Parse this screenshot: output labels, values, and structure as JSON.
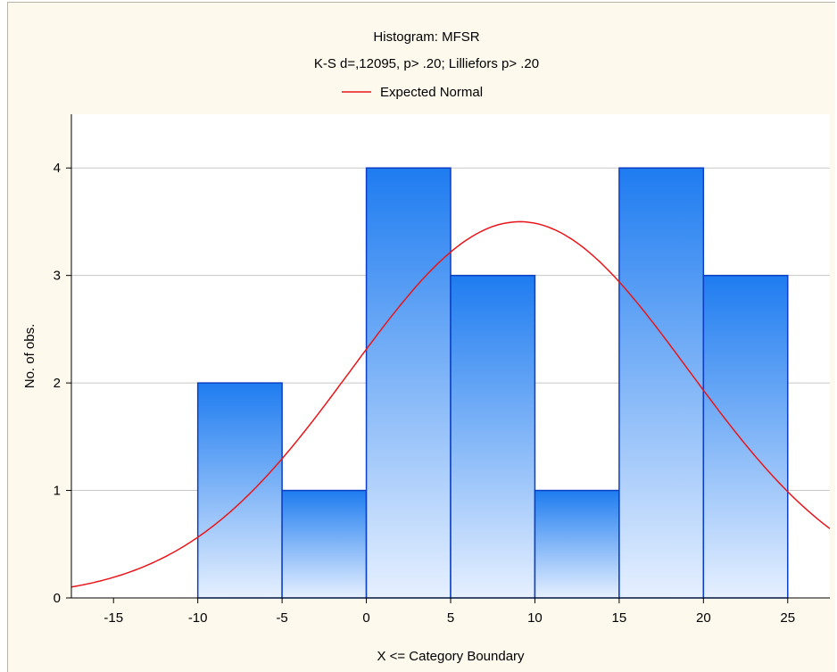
{
  "chart_data": {
    "type": "bar",
    "title": "Histogram: MFSR",
    "subtitle": "K-S d=,12095, p> .20; Lilliefors p> .20",
    "xlabel": "X <= Category Boundary",
    "ylabel": "No. of obs.",
    "legend": {
      "position": "top-center",
      "entries": [
        {
          "name": "Expected Normal",
          "color": "#e8161b"
        }
      ]
    },
    "bins": [
      {
        "from": -10,
        "to": -5,
        "value": 2
      },
      {
        "from": -5,
        "to": 0,
        "value": 1
      },
      {
        "from": 0,
        "to": 5,
        "value": 4
      },
      {
        "from": 5,
        "to": 10,
        "value": 3
      },
      {
        "from": 10,
        "to": 15,
        "value": 1
      },
      {
        "from": 15,
        "to": 20,
        "value": 4
      },
      {
        "from": 20,
        "to": 25,
        "value": 3
      }
    ],
    "xticks": [
      -15,
      -10,
      -5,
      0,
      5,
      10,
      15,
      20,
      25
    ],
    "yticks": [
      0,
      1,
      2,
      3,
      4
    ],
    "xlim": [
      -17.5,
      27.5
    ],
    "ylim": [
      0,
      4.5
    ],
    "grid": true,
    "expected_normal": {
      "name": "Expected Normal",
      "mean": 9.1,
      "sd": 10.0,
      "peak": 3.5,
      "color": "#e8161b"
    },
    "colors": {
      "bar_top": "#1e7cf0",
      "bar_bottom": "#e6f0ff",
      "bar_edge": "#0b3fc4",
      "grid": "#c8c8c8",
      "background": "#fdf9ec",
      "plot_background": "#ffffff"
    }
  }
}
